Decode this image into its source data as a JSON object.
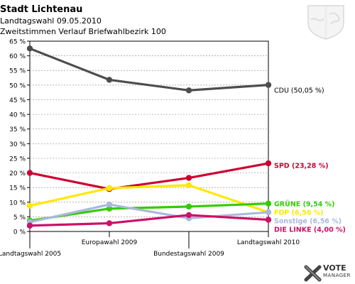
{
  "header": {
    "title": "Stadt Lichtenau",
    "subtitle": "Landtagswahl 09.05.2010",
    "subtitle2": "Zweitstimmen Verlauf Briefwahlbezirk 100"
  },
  "logo": {
    "line1": "VOTE",
    "line2": "MANAGER"
  },
  "chart_data": {
    "type": "line",
    "categories": [
      "Landtagswahl 2005",
      "Europawahl 2009",
      "Bundestagswahl 2009",
      "Landtagswahl 2010"
    ],
    "ylim": [
      0,
      65
    ],
    "yticks": [
      0,
      5,
      10,
      15,
      20,
      25,
      30,
      35,
      40,
      45,
      50,
      55,
      60,
      65
    ],
    "ytick_labels": [
      "0 %",
      "5 %",
      "10 %",
      "15 %",
      "20 %",
      "25 %",
      "30 %",
      "35 %",
      "40 %",
      "45 %",
      "50 %",
      "55 %",
      "60 %",
      "65 %"
    ],
    "grid": true,
    "series": [
      {
        "name": "CDU",
        "label": "CDU (50,05 %)",
        "color": "#4d4d4d",
        "values": [
          62.5,
          51.8,
          48.2,
          50.05
        ]
      },
      {
        "name": "SPD",
        "label": "SPD (23,28 %)",
        "color": "#cc0033",
        "values": [
          20.0,
          14.5,
          18.3,
          23.28
        ]
      },
      {
        "name": "FDP",
        "label": "FDP (6,56 %)",
        "color": "#ffe800",
        "values": [
          8.8,
          14.8,
          15.8,
          6.56
        ]
      },
      {
        "name": "GRÜNE",
        "label": "GRÜNE (9,54 %)",
        "color": "#33cc00",
        "values": [
          3.7,
          7.8,
          8.5,
          9.54
        ]
      },
      {
        "name": "Sonstige",
        "label": "Sonstige (6,56 %)",
        "color": "#aab8dd",
        "values": [
          3.2,
          9.2,
          4.5,
          6.56
        ]
      },
      {
        "name": "DIE LINKE",
        "label": "DIE LINKE (4,00 %)",
        "color": "#cc1166",
        "values": [
          2.0,
          2.8,
          5.6,
          4.0
        ]
      }
    ]
  }
}
